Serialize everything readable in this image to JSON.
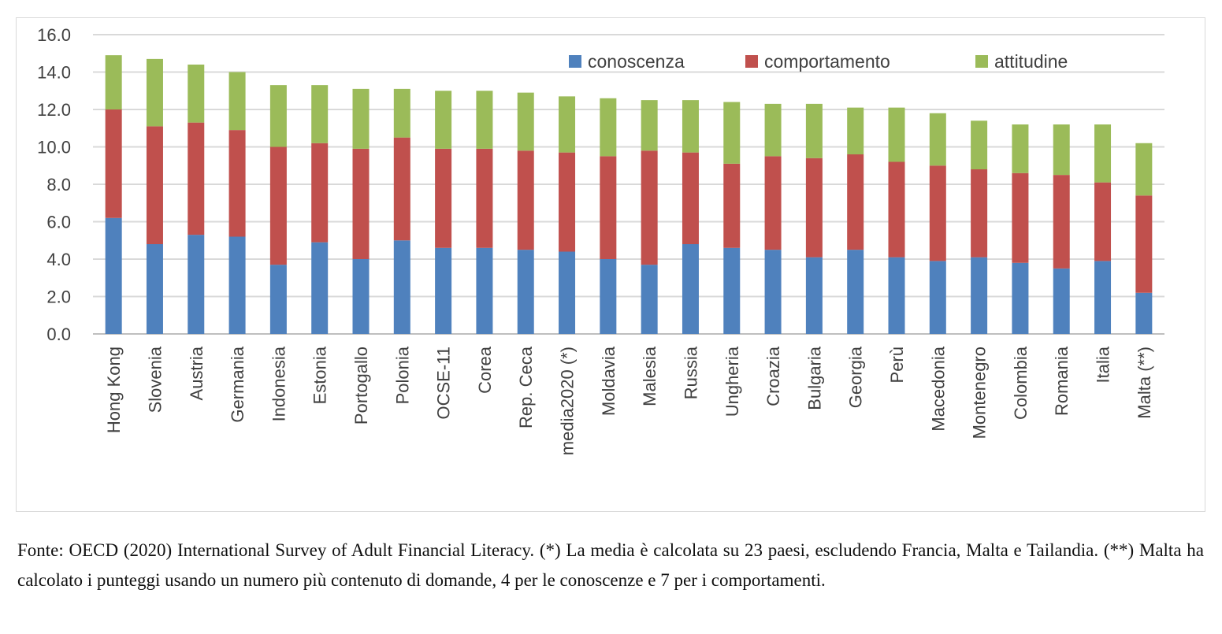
{
  "chart_data": {
    "type": "bar",
    "stacked": true,
    "categories": [
      "Hong Kong",
      "Slovenia",
      "Austria",
      "Germania",
      "Indonesia",
      "Estonia",
      "Portogallo",
      "Polonia",
      "OCSE-11",
      "Corea",
      "Rep. Ceca",
      "media2020 (*)",
      "Moldavia",
      "Malesia",
      "Russia",
      "Ungheria",
      "Croazia",
      "Bulgaria",
      "Georgia",
      "Perù",
      "Macedonia",
      "Montenegro",
      "Colombia",
      "Romania",
      "Italia",
      "Malta (**)"
    ],
    "series": [
      {
        "name": "conoscenza",
        "color": "#4f81bd",
        "values": [
          6.2,
          4.8,
          5.3,
          5.2,
          3.7,
          4.9,
          4.0,
          5.0,
          4.6,
          4.6,
          4.5,
          4.4,
          4.0,
          3.7,
          4.8,
          4.6,
          4.5,
          4.1,
          4.5,
          4.1,
          3.9,
          4.1,
          3.8,
          3.5,
          3.9,
          2.2
        ]
      },
      {
        "name": "comportamento",
        "color": "#c0504d",
        "values": [
          5.8,
          6.3,
          6.0,
          5.7,
          6.3,
          5.3,
          5.9,
          5.5,
          5.3,
          5.3,
          5.3,
          5.3,
          5.5,
          6.1,
          4.9,
          4.5,
          5.0,
          5.3,
          5.1,
          5.1,
          5.1,
          4.7,
          4.8,
          5.0,
          4.2,
          5.2
        ]
      },
      {
        "name": "attitudine",
        "color": "#9bbb59",
        "values": [
          2.9,
          3.6,
          3.1,
          3.1,
          3.3,
          3.1,
          3.2,
          2.6,
          3.1,
          3.1,
          3.1,
          3.0,
          3.1,
          2.7,
          2.8,
          3.3,
          2.8,
          2.9,
          2.5,
          2.9,
          2.8,
          2.6,
          2.6,
          2.7,
          3.1,
          2.8
        ]
      }
    ],
    "ylim": [
      0,
      16
    ],
    "yticks": [
      "0.0",
      "2.0",
      "4.0",
      "6.0",
      "8.0",
      "10.0",
      "12.0",
      "14.0",
      "16.0"
    ],
    "grid": true,
    "legend_position": "top-right",
    "title": "",
    "xlabel": "",
    "ylabel": ""
  },
  "caption": "Fonte: OECD (2020) International Survey of Adult Financial Literacy. (*) La media è calcolata su 23 paesi, escludendo Francia, Malta e Tailandia. (**) Malta ha calcolato i punteggi usando un numero più contenuto di domande, 4 per le conoscenze e 7 per i comportamenti."
}
